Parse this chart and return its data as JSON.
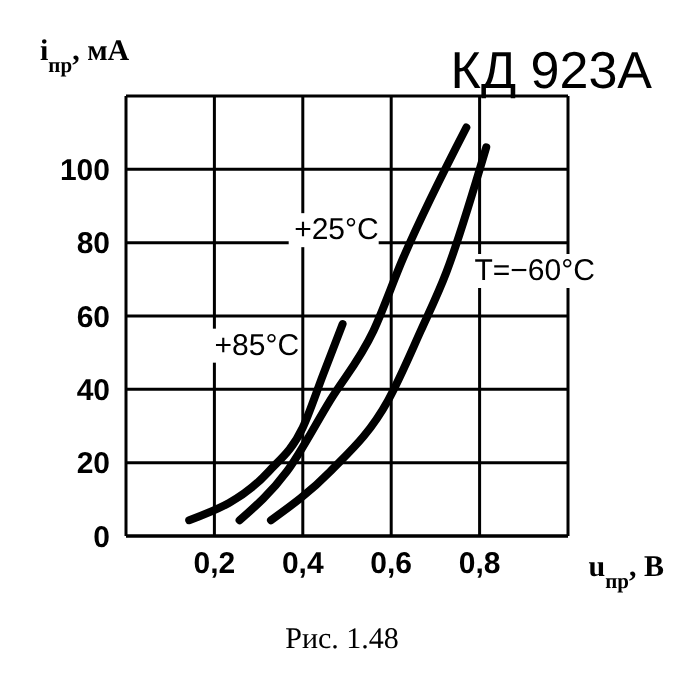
{
  "chart_data": {
    "type": "line",
    "title": "КД 923А",
    "xlabel": "u$_{пр}$, В",
    "ylabel": "i$_{пр}$, мА",
    "annotations": [
      "Рис. 1.48"
    ],
    "series": [
      {
        "name": "+85°C",
        "color": "#000000",
        "x": [
          0.143,
          0.323,
          0.4,
          0.446,
          0.49
        ],
        "values": [
          4.3,
          17.6,
          29.6,
          44,
          57.8
        ]
      },
      {
        "name": "+25°C",
        "color": "#000000",
        "x": [
          0.257,
          0.364,
          0.462,
          0.56,
          0.626,
          0.77
        ],
        "values": [
          4.3,
          17.6,
          37,
          56,
          75.5,
          111.4
        ]
      },
      {
        "name": "T=−60°C",
        "color": "#000000",
        "x": [
          0.328,
          0.462,
          0.593,
          0.667,
          0.725,
          0.815
        ],
        "values": [
          4.3,
          17.6,
          37,
          56,
          72,
          106
        ]
      }
    ],
    "xlim": [
      0,
      1.0
    ],
    "xticks": [
      {
        "value": 0.2,
        "label": "0,2"
      },
      {
        "value": 0.4,
        "label": "0,4"
      },
      {
        "value": 0.6,
        "label": "0,6"
      },
      {
        "value": 0.8,
        "label": "0,8"
      },
      {
        "value": 1.0,
        "label": null
      }
    ],
    "ylim": [
      0,
      120
    ],
    "yticks": [
      0,
      20,
      40,
      60,
      80,
      100,
      {
        "value": 120,
        "label": null
      }
    ],
    "grid": true,
    "line_style": "solid",
    "marker": "none"
  }
}
